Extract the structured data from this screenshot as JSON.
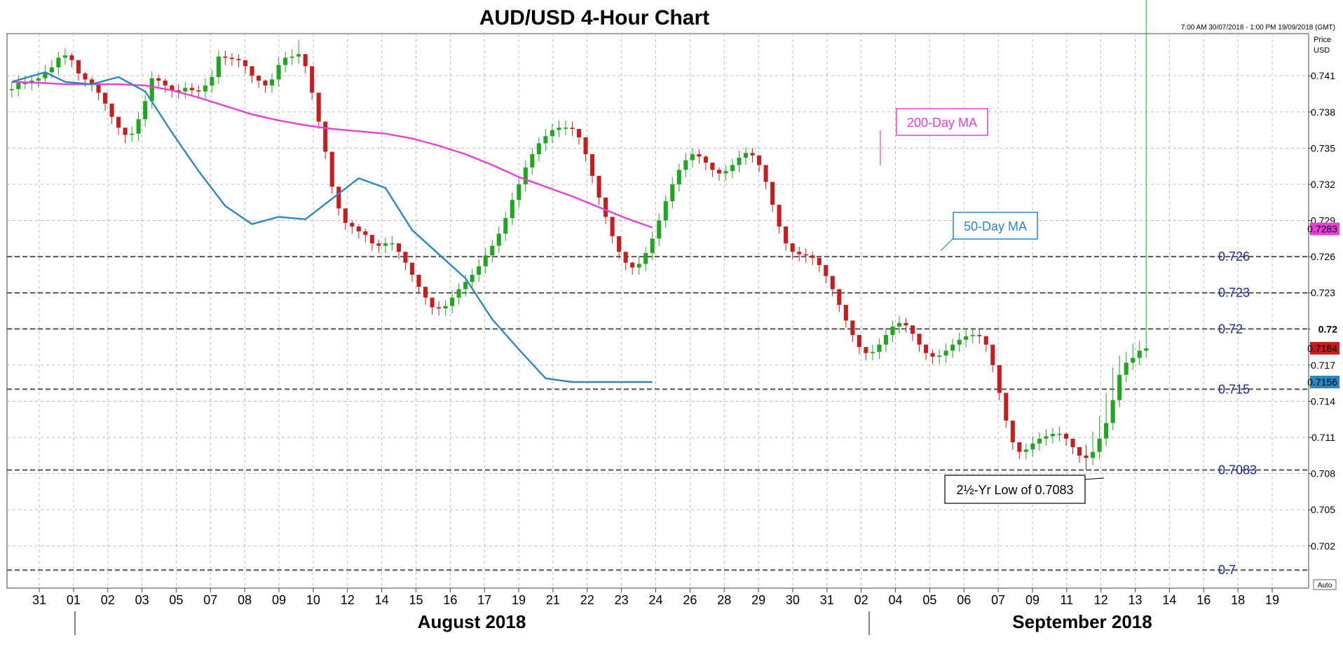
{
  "header": {
    "title": "AUD/USD 4-Hour Chart",
    "timerange": "7:00 AM 30/07/2018 - 1:00 PM 19/09/2018 (GMT)",
    "price_label": "Price",
    "currency_label": "USD",
    "auto_label": "Auto"
  },
  "chart_data": {
    "type": "candlestick",
    "title": "AUD/USD 4-Hour Chart",
    "ylim": [
      0.6985,
      0.7445
    ],
    "y_ticks": [
      "0.741",
      "0.738",
      "0.735",
      "0.732",
      "0.729",
      "0.726",
      "0.723",
      "0.72",
      "0.717",
      "0.714",
      "0.711",
      "0.708",
      "0.705",
      "0.702"
    ],
    "x_ticks": [
      "31",
      "01",
      "02",
      "03",
      "05",
      "07",
      "08",
      "09",
      "10",
      "12",
      "14",
      "15",
      "16",
      "17",
      "19",
      "21",
      "22",
      "23",
      "24",
      "26",
      "28",
      "29",
      "30",
      "31",
      "02",
      "04",
      "05",
      "06",
      "07",
      "09",
      "11",
      "12",
      "13",
      "14",
      "16",
      "18",
      "19"
    ],
    "months": [
      "August 2018",
      "September 2018"
    ],
    "grid": true,
    "colors": {
      "up": "#22a522",
      "down": "#c41e1e",
      "ma200": "#e83fd6",
      "ma50": "#2e86c1",
      "level": "#1a2a8c"
    },
    "series": [
      {
        "name": "200-Day MA",
        "x": [
          0,
          5,
          8,
          12,
          16,
          20,
          24,
          28,
          32,
          36,
          40,
          44,
          48,
          52,
          56,
          60,
          64,
          68,
          72,
          76,
          80,
          84,
          88,
          92,
          96
        ],
        "values": [
          0.7405,
          0.7404,
          0.7403,
          0.7403,
          0.7403,
          0.7402,
          0.7398,
          0.7392,
          0.7385,
          0.7378,
          0.7373,
          0.7369,
          0.7366,
          0.7364,
          0.7362,
          0.7358,
          0.7352,
          0.7345,
          0.7336,
          0.7326,
          0.7318,
          0.731,
          0.7301,
          0.7292,
          0.7284
        ]
      },
      {
        "name": "50-Day MA",
        "x": [
          0,
          5,
          8,
          12,
          16,
          20,
          24,
          28,
          32,
          36,
          40,
          44,
          48,
          52,
          56,
          60,
          64,
          68,
          72,
          76,
          80,
          84,
          88,
          92,
          96
        ],
        "values": [
          0.7405,
          0.7413,
          0.7405,
          0.7403,
          0.7409,
          0.7397,
          0.7363,
          0.7331,
          0.7302,
          0.7287,
          0.7293,
          0.7291,
          0.7308,
          0.7325,
          0.7317,
          0.7282,
          0.7262,
          0.7242,
          0.7208,
          0.7183,
          0.7159,
          0.7156,
          0.7156,
          0.7156,
          0.7156
        ]
      }
    ],
    "candles": {
      "open": [
        0.7398,
        0.7399,
        0.7404,
        0.7404,
        0.7406,
        0.7408,
        0.7413,
        0.7417,
        0.7425,
        0.7427,
        0.7423,
        0.7412,
        0.7407,
        0.7403,
        0.7396,
        0.7387,
        0.7376,
        0.7367,
        0.7361,
        0.7362,
        0.7374,
        0.7389,
        0.7408,
        0.7406,
        0.7402,
        0.7398,
        0.7397,
        0.74,
        0.7398,
        0.7397,
        0.7402,
        0.7409,
        0.7426,
        0.7425,
        0.7424,
        0.7423,
        0.7418,
        0.741,
        0.7406,
        0.7402,
        0.7407,
        0.7419,
        0.7425,
        0.7426,
        0.7428,
        0.7418,
        0.7396,
        0.7372,
        0.7347,
        0.7318,
        0.73,
        0.7288,
        0.7285,
        0.7281,
        0.7278,
        0.7271,
        0.7269,
        0.7271,
        0.7271,
        0.7264,
        0.7255,
        0.7245,
        0.7235,
        0.7226,
        0.7218,
        0.7217,
        0.7219,
        0.7226,
        0.7233,
        0.7239,
        0.7245,
        0.7252,
        0.7261,
        0.7269,
        0.7279,
        0.7292,
        0.7307,
        0.732,
        0.7334,
        0.7345,
        0.7354,
        0.736,
        0.7365,
        0.7367,
        0.7367,
        0.7366,
        0.7359,
        0.7345,
        0.7327,
        0.7309,
        0.7293,
        0.7277,
        0.7264,
        0.7255,
        0.7251,
        0.7254,
        0.7263,
        0.7275,
        0.729,
        0.7306,
        0.732,
        0.7332,
        0.734,
        0.7345,
        0.7343,
        0.7338,
        0.7332,
        0.7329,
        0.7331,
        0.7336,
        0.7342,
        0.7346,
        0.7344,
        0.7336,
        0.7322,
        0.7303,
        0.7285,
        0.7271,
        0.7264,
        0.7262,
        0.7261,
        0.7259,
        0.7253,
        0.7244,
        0.7233,
        0.722,
        0.7207,
        0.7195,
        0.7185,
        0.718,
        0.7181,
        0.7187,
        0.7195,
        0.7202,
        0.7205,
        0.7203,
        0.7196,
        0.7187,
        0.718,
        0.7177,
        0.7178,
        0.7182,
        0.7187,
        0.7191,
        0.7194,
        0.7195,
        0.7194,
        0.7187,
        0.717,
        0.7147,
        0.7124,
        0.7106,
        0.7098,
        0.71,
        0.7105,
        0.7109,
        0.7111,
        0.7113,
        0.7113,
        0.7109,
        0.7102,
        0.7095,
        0.7093,
        0.7098,
        0.7109,
        0.7122,
        0.7141,
        0.7162,
        0.7172,
        0.7176,
        0.7182
      ],
      "close": [
        0.7399,
        0.7404,
        0.7404,
        0.7406,
        0.7408,
        0.7413,
        0.7417,
        0.7425,
        0.7427,
        0.7423,
        0.7412,
        0.7407,
        0.7403,
        0.7396,
        0.7387,
        0.7376,
        0.7367,
        0.7361,
        0.7362,
        0.7374,
        0.7389,
        0.7408,
        0.7406,
        0.7402,
        0.7398,
        0.7397,
        0.74,
        0.7398,
        0.7397,
        0.7402,
        0.7409,
        0.7426,
        0.7425,
        0.7424,
        0.7423,
        0.7418,
        0.741,
        0.7406,
        0.7402,
        0.7407,
        0.7419,
        0.7425,
        0.7426,
        0.7428,
        0.7418,
        0.7396,
        0.7372,
        0.7347,
        0.7318,
        0.73,
        0.7288,
        0.7285,
        0.7281,
        0.7278,
        0.7271,
        0.7269,
        0.7271,
        0.7271,
        0.7264,
        0.7255,
        0.7245,
        0.7235,
        0.7226,
        0.7218,
        0.7217,
        0.7219,
        0.7226,
        0.7233,
        0.7239,
        0.7245,
        0.7252,
        0.7261,
        0.7269,
        0.7279,
        0.7292,
        0.7307,
        0.732,
        0.7334,
        0.7345,
        0.7354,
        0.736,
        0.7365,
        0.7367,
        0.7367,
        0.7366,
        0.7359,
        0.7345,
        0.7327,
        0.7309,
        0.7293,
        0.7277,
        0.7264,
        0.7255,
        0.7251,
        0.7254,
        0.7263,
        0.7275,
        0.729,
        0.7306,
        0.732,
        0.7332,
        0.734,
        0.7345,
        0.7343,
        0.7338,
        0.7332,
        0.7329,
        0.7331,
        0.7336,
        0.7342,
        0.7346,
        0.7344,
        0.7336,
        0.7322,
        0.7303,
        0.7285,
        0.7271,
        0.7264,
        0.7262,
        0.7261,
        0.7259,
        0.7253,
        0.7244,
        0.7233,
        0.722,
        0.7207,
        0.7195,
        0.7185,
        0.718,
        0.7181,
        0.7187,
        0.7195,
        0.7202,
        0.7205,
        0.7203,
        0.7196,
        0.7187,
        0.718,
        0.7177,
        0.7178,
        0.7182,
        0.7187,
        0.7191,
        0.7194,
        0.7195,
        0.7194,
        0.7187,
        0.717,
        0.7147,
        0.7124,
        0.7106,
        0.7098,
        0.71,
        0.7105,
        0.7109,
        0.7111,
        0.7113,
        0.7113,
        0.7109,
        0.7102,
        0.7095,
        0.7093,
        0.7098,
        0.7109,
        0.7122,
        0.7141,
        0.7162,
        0.7172,
        0.7176,
        0.7182,
        0.7184
      ],
      "high": [
        0.7405,
        0.741,
        0.741,
        0.7411,
        0.7414,
        0.7419,
        0.7423,
        0.743,
        0.7433,
        0.7429,
        0.7418,
        0.7413,
        0.7409,
        0.7401,
        0.7392,
        0.7382,
        0.7372,
        0.7367,
        0.7368,
        0.738,
        0.7394,
        0.7414,
        0.7411,
        0.7408,
        0.7403,
        0.7403,
        0.7405,
        0.7404,
        0.7402,
        0.7408,
        0.7415,
        0.7431,
        0.7431,
        0.7429,
        0.7428,
        0.7423,
        0.7416,
        0.7411,
        0.7407,
        0.7412,
        0.7425,
        0.743,
        0.7432,
        0.744,
        0.7424,
        0.7402,
        0.7378,
        0.7353,
        0.7323,
        0.7306,
        0.7293,
        0.729,
        0.7287,
        0.7283,
        0.7277,
        0.7274,
        0.7276,
        0.7277,
        0.7269,
        0.7261,
        0.7251,
        0.724,
        0.7231,
        0.7223,
        0.7223,
        0.7224,
        0.7232,
        0.7238,
        0.7245,
        0.725,
        0.7258,
        0.7267,
        0.7274,
        0.7285,
        0.7297,
        0.7313,
        0.7325,
        0.734,
        0.735,
        0.7359,
        0.7366,
        0.737,
        0.7373,
        0.7373,
        0.7372,
        0.7365,
        0.7351,
        0.7333,
        0.7315,
        0.7299,
        0.7283,
        0.727,
        0.7261,
        0.7256,
        0.726,
        0.7268,
        0.7281,
        0.7296,
        0.7311,
        0.7326,
        0.7337,
        0.7346,
        0.735,
        0.7349,
        0.7344,
        0.7338,
        0.7334,
        0.7336,
        0.7341,
        0.7348,
        0.7351,
        0.735,
        0.7342,
        0.7328,
        0.7309,
        0.7291,
        0.7276,
        0.7269,
        0.7268,
        0.7267,
        0.7264,
        0.7259,
        0.725,
        0.7239,
        0.7225,
        0.7213,
        0.72,
        0.7191,
        0.7185,
        0.7187,
        0.7192,
        0.7201,
        0.7207,
        0.7211,
        0.7209,
        0.7202,
        0.7192,
        0.7186,
        0.7183,
        0.7183,
        0.7188,
        0.7192,
        0.7197,
        0.72,
        0.72,
        0.72,
        0.7193,
        0.7176,
        0.7153,
        0.713,
        0.7112,
        0.7104,
        0.7105,
        0.7111,
        0.7114,
        0.7117,
        0.7118,
        0.7119,
        0.7114,
        0.7108,
        0.71,
        0.7104,
        0.7115,
        0.7128,
        0.7147,
        0.7168,
        0.7178,
        0.7181,
        0.7188,
        0.719
      ],
      "low": [
        0.7392,
        0.7393,
        0.7399,
        0.7398,
        0.74,
        0.7403,
        0.7408,
        0.7411,
        0.7419,
        0.7417,
        0.7406,
        0.7401,
        0.7397,
        0.739,
        0.7381,
        0.737,
        0.7361,
        0.7354,
        0.7355,
        0.7356,
        0.7368,
        0.7383,
        0.74,
        0.7396,
        0.7392,
        0.7391,
        0.7391,
        0.7393,
        0.7391,
        0.7391,
        0.7396,
        0.7403,
        0.7419,
        0.7418,
        0.7417,
        0.7412,
        0.7404,
        0.74,
        0.7396,
        0.7396,
        0.7401,
        0.7413,
        0.7419,
        0.742,
        0.7412,
        0.739,
        0.7366,
        0.7341,
        0.7312,
        0.7294,
        0.7282,
        0.7279,
        0.7275,
        0.7272,
        0.7265,
        0.7263,
        0.7263,
        0.7265,
        0.7258,
        0.7249,
        0.7239,
        0.7229,
        0.722,
        0.7212,
        0.7211,
        0.7211,
        0.7213,
        0.722,
        0.7227,
        0.7233,
        0.7239,
        0.7246,
        0.7255,
        0.7263,
        0.7273,
        0.7286,
        0.7301,
        0.7314,
        0.7328,
        0.7339,
        0.7348,
        0.7354,
        0.7359,
        0.7361,
        0.736,
        0.7353,
        0.7339,
        0.7321,
        0.7303,
        0.7287,
        0.7271,
        0.7258,
        0.7249,
        0.7245,
        0.7245,
        0.7248,
        0.7257,
        0.7269,
        0.7284,
        0.73,
        0.7314,
        0.7326,
        0.7334,
        0.7337,
        0.7332,
        0.7326,
        0.7323,
        0.7323,
        0.7325,
        0.733,
        0.7336,
        0.7338,
        0.733,
        0.7316,
        0.7297,
        0.7279,
        0.7265,
        0.7258,
        0.7256,
        0.7255,
        0.7253,
        0.7247,
        0.7238,
        0.7227,
        0.7214,
        0.7201,
        0.7189,
        0.7179,
        0.7174,
        0.7174,
        0.7175,
        0.7181,
        0.7189,
        0.7196,
        0.7197,
        0.719,
        0.7181,
        0.7174,
        0.7171,
        0.7171,
        0.7172,
        0.7176,
        0.7181,
        0.7185,
        0.7188,
        0.7188,
        0.7181,
        0.7164,
        0.7141,
        0.7118,
        0.71,
        0.7092,
        0.7092,
        0.7094,
        0.7099,
        0.7103,
        0.7105,
        0.7107,
        0.7103,
        0.7096,
        0.7089,
        0.7083,
        0.7087,
        0.7092,
        0.7103,
        0.7116,
        0.7135,
        0.7156,
        0.7166,
        0.717,
        0.7176
      ]
    },
    "levels": [
      {
        "value": 0.726,
        "label": "0.726"
      },
      {
        "value": 0.723,
        "label": "0.723"
      },
      {
        "value": 0.72,
        "label": "0.72"
      },
      {
        "value": 0.715,
        "label": "0.715"
      },
      {
        "value": 0.7083,
        "label": "0.7083"
      },
      {
        "value": 0.7,
        "label": "0.7"
      }
    ],
    "price_tags": [
      {
        "value": 0.7283,
        "label": "0.7283",
        "color": "#e83fd6"
      },
      {
        "value": 0.72,
        "label": "0.72",
        "color": "#ffffff"
      },
      {
        "value": 0.7184,
        "label": "0.7184",
        "color": "#c41e1e"
      },
      {
        "value": 0.7156,
        "label": "0.7156",
        "color": "#2e86c1"
      }
    ],
    "annotations": [
      {
        "text": "200-Day MA",
        "color": "#e83fd6"
      },
      {
        "text": "50-Day MA",
        "color": "#2e86c1"
      },
      {
        "text": "2½-Yr Low of 0.7083",
        "color": "#000000"
      }
    ]
  }
}
